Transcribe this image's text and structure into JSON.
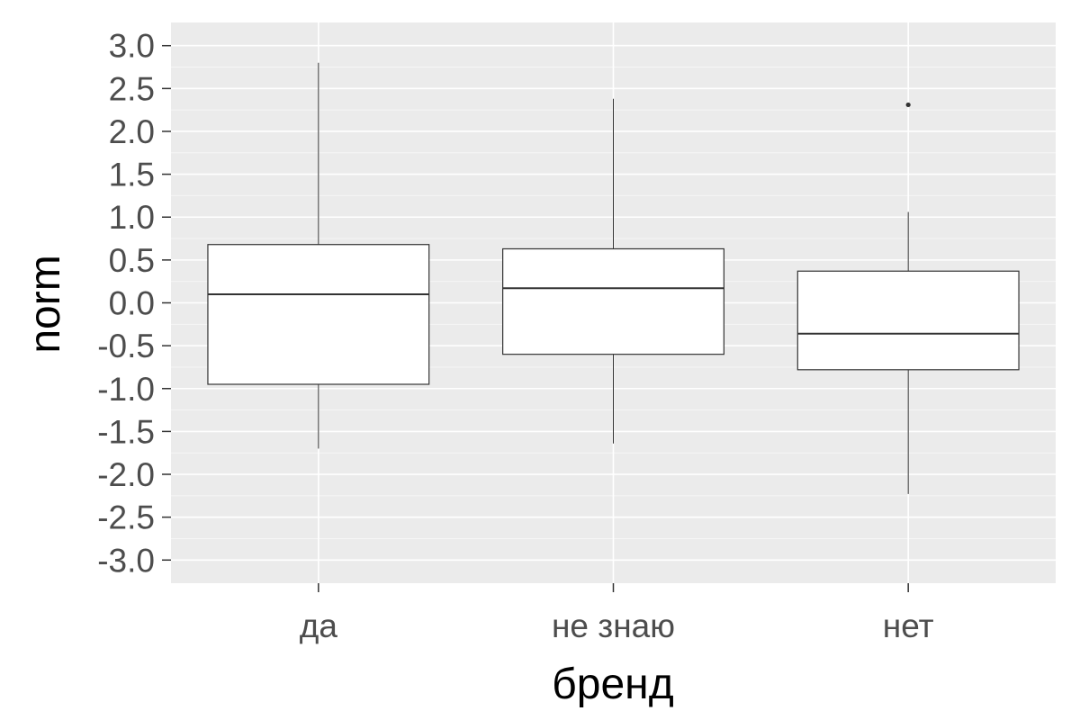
{
  "chart_data": {
    "type": "box",
    "xlabel": "бренд",
    "ylabel": "norm",
    "categories": [
      "да",
      "не знаю",
      "нет"
    ],
    "y_ticks": [
      "3.0",
      "2.5",
      "2.0",
      "1.5",
      "1.0",
      "0.5",
      "0.0",
      "-0.5",
      "-1.0",
      "-1.5",
      "-2.0",
      "-2.5",
      "-3.0"
    ],
    "y_tick_values": [
      3.0,
      2.5,
      2.0,
      1.5,
      1.0,
      0.5,
      0.0,
      -0.5,
      -1.0,
      -1.5,
      -2.0,
      -2.5,
      -3.0
    ],
    "ylim": [
      -3.27,
      3.27
    ],
    "boxes": [
      {
        "category": "да",
        "whisker_low": -1.7,
        "q1": -0.95,
        "median": 0.1,
        "q3": 0.68,
        "whisker_high": 2.8,
        "outliers": []
      },
      {
        "category": "не знаю",
        "whisker_low": -1.64,
        "q1": -0.6,
        "median": 0.17,
        "q3": 0.63,
        "whisker_high": 2.38,
        "outliers": []
      },
      {
        "category": "нет",
        "whisker_low": -2.23,
        "q1": -0.78,
        "median": -0.36,
        "q3": 0.37,
        "whisker_high": 1.06,
        "outliers": [
          2.31
        ]
      }
    ],
    "grid": true,
    "colors": {
      "panel": "#ebebeb",
      "grid": "#ffffff",
      "box_fill": "#ffffff",
      "box_line": "#333333",
      "tick_text": "#4d4d4d",
      "title_text": "#000000"
    }
  }
}
